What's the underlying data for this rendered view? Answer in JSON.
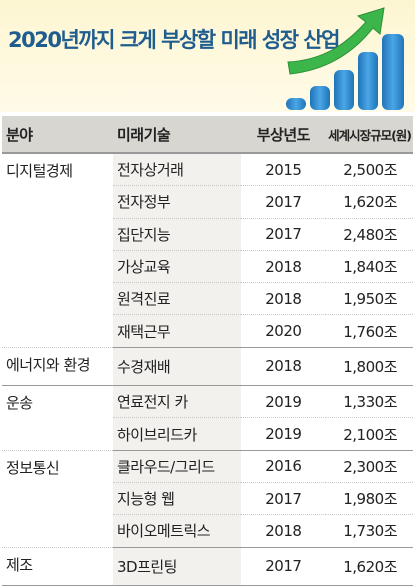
{
  "title": "2020년까지 크게 부상할 미래 성장 산업",
  "headers": {
    "field": "분야",
    "tech": "미래기술",
    "year": "부상년도",
    "size": "세계시장규모(원)"
  },
  "colors": {
    "title": "#1f5d8f",
    "bar": "#2e8bd0",
    "arrow": "#3cb54a"
  },
  "groups": [
    {
      "field": "디지털경제",
      "rows": [
        {
          "tech": "전자상거래",
          "year": "2015",
          "size": "2,500조"
        },
        {
          "tech": "전자정부",
          "year": "2017",
          "size": "1,620조"
        },
        {
          "tech": "집단지능",
          "year": "2017",
          "size": "2,480조"
        },
        {
          "tech": "가상교육",
          "year": "2018",
          "size": "1,840조"
        },
        {
          "tech": "원격진료",
          "year": "2018",
          "size": "1,950조"
        },
        {
          "tech": "재택근무",
          "year": "2020",
          "size": "1,760조"
        }
      ]
    },
    {
      "field": "에너지와 환경",
      "rows": [
        {
          "tech": "수경재배",
          "year": "2018",
          "size": "1,800조"
        }
      ]
    },
    {
      "field": "운송",
      "rows": [
        {
          "tech": "연료전지 카",
          "year": "2019",
          "size": "1,330조"
        },
        {
          "tech": "하이브리드카",
          "year": "2019",
          "size": "2,100조"
        }
      ]
    },
    {
      "field": "정보통신",
      "rows": [
        {
          "tech": "클라우드/그리드",
          "year": "2016",
          "size": "2,300조"
        },
        {
          "tech": "지능형 웹",
          "year": "2017",
          "size": "1,980조"
        },
        {
          "tech": "바이오메트릭스",
          "year": "2018",
          "size": "1,730조"
        }
      ]
    },
    {
      "field": "제조",
      "rows": [
        {
          "tech": "3D프린팅",
          "year": "2017",
          "size": "1,620조"
        }
      ]
    }
  ]
}
